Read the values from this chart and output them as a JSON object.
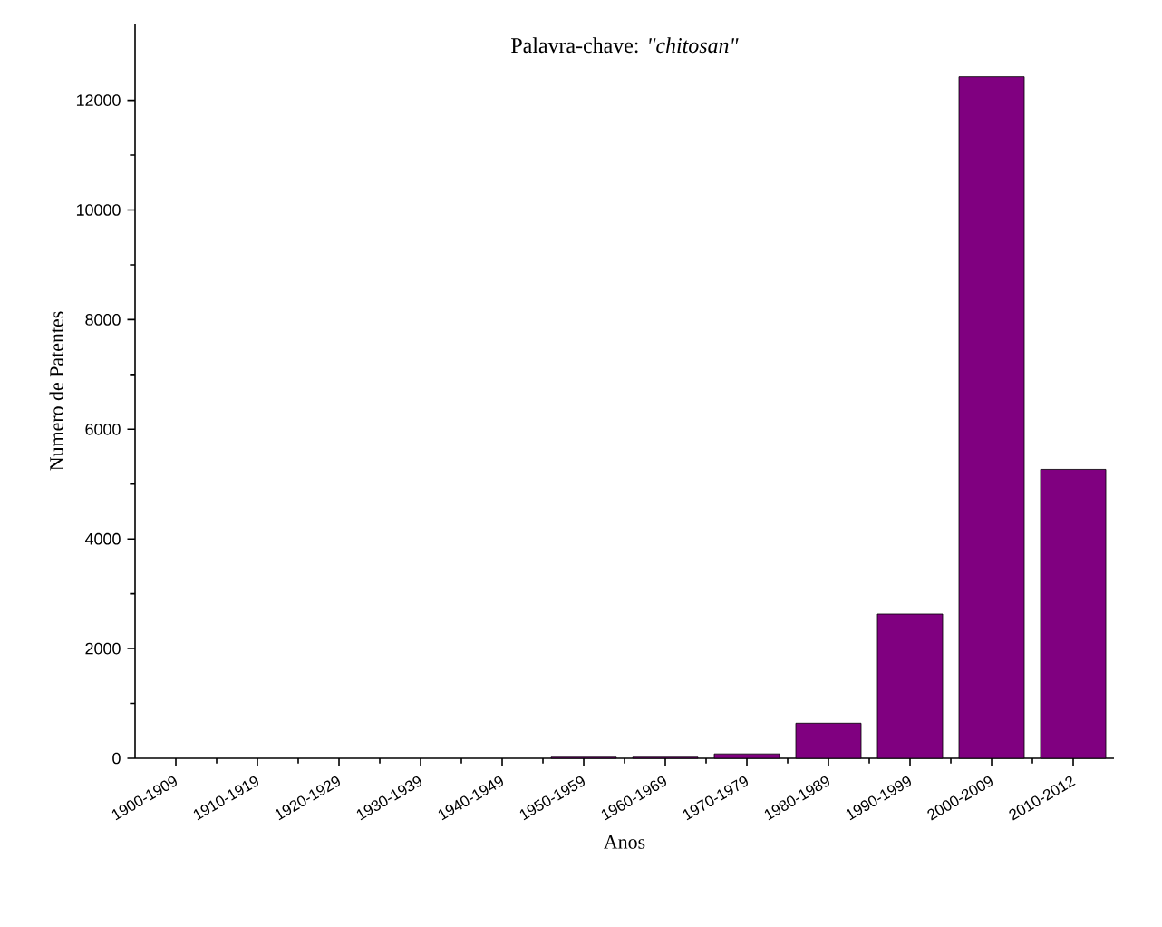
{
  "chart_data": {
    "type": "bar",
    "title": "Palavra-chave: *\"chitosan\"*",
    "xlabel": "Anos",
    "ylabel": "Numero de Patentes",
    "categories": [
      "1900-1909",
      "1910-1919",
      "1920-1929",
      "1930-1939",
      "1940-1949",
      "1950-1959",
      "1960-1969",
      "1970-1979",
      "1980-1989",
      "1990-1999",
      "2000-2009",
      "2010-2012"
    ],
    "values": [
      0,
      0,
      0,
      0,
      0,
      20,
      20,
      80,
      640,
      2630,
      12430,
      5270
    ],
    "color": "#800080",
    "ylim": [
      0,
      13400
    ],
    "yticks": [
      0,
      2000,
      4000,
      6000,
      8000,
      10000,
      12000
    ],
    "grid": false
  }
}
